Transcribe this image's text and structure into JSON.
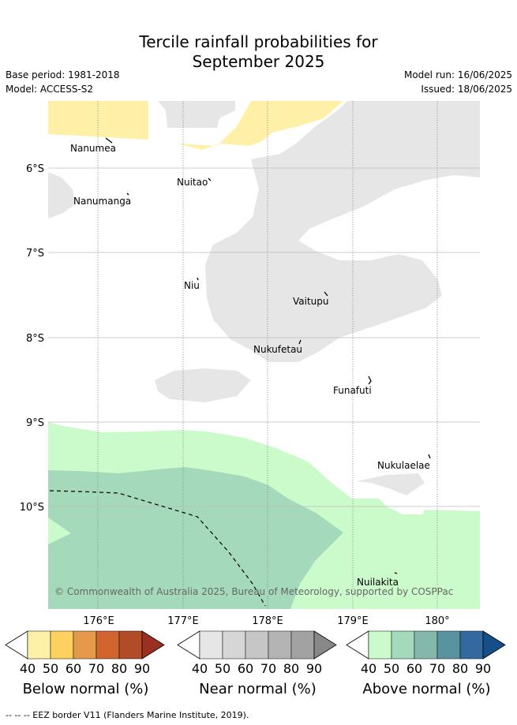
{
  "title_line1": "Tercile rainfall probabilities for",
  "title_line2": "September 2025",
  "base_period": "Base period: 1981-2018",
  "model": "Model: ACCESS-S2",
  "model_run": "Model run: 16/06/2025",
  "issued": "Issued: 18/06/2025",
  "lon_ticks": [
    "176°E",
    "177°E",
    "178°E",
    "179°E",
    "180°"
  ],
  "lat_ticks": [
    "6°S",
    "7°S",
    "8°S",
    "9°S",
    "10°S"
  ],
  "places": [
    "Nanumea",
    "Nuitao",
    "Nanumanga",
    "Niu",
    "Vaitupu",
    "Nukufetau",
    "Funafuti",
    "Nukulaelae",
    "Nuilakita"
  ],
  "copyright": "© Commonwealth of Australia 2025, Bureau of Meteorology, supported by COSPPac",
  "legends": [
    {
      "title": "Below normal (%)",
      "ticks": [
        "40",
        "50",
        "60",
        "70",
        "80",
        "90"
      ],
      "colors": [
        "#ffffff",
        "#fff0a8",
        "#fdd160",
        "#e59a4a",
        "#d06530",
        "#b24c28",
        "#993020"
      ]
    },
    {
      "title": "Near normal (%)",
      "ticks": [
        "40",
        "50",
        "60",
        "70",
        "80",
        "90"
      ],
      "colors": [
        "#ffffff",
        "#e6e6e6",
        "#d6d6d6",
        "#c6c6c6",
        "#b4b4b4",
        "#a2a2a2",
        "#888888"
      ]
    },
    {
      "title": "Above normal (%)",
      "ticks": [
        "40",
        "50",
        "60",
        "70",
        "80",
        "90"
      ],
      "colors": [
        "#ffffff",
        "#ccfbcb",
        "#a4d9bc",
        "#85b8ad",
        "#5a93a0",
        "#326aa0",
        "#154e88"
      ]
    }
  ],
  "eez_note": "-- -- -- EEZ border V11 (Flanders Marine Institute, 2019).",
  "colors": {
    "below_40": "#fff0a8",
    "near_40": "#e6e6e6",
    "above_40": "#ccfbcb",
    "above_50": "#a4d9bc",
    "grid": "#888888"
  }
}
